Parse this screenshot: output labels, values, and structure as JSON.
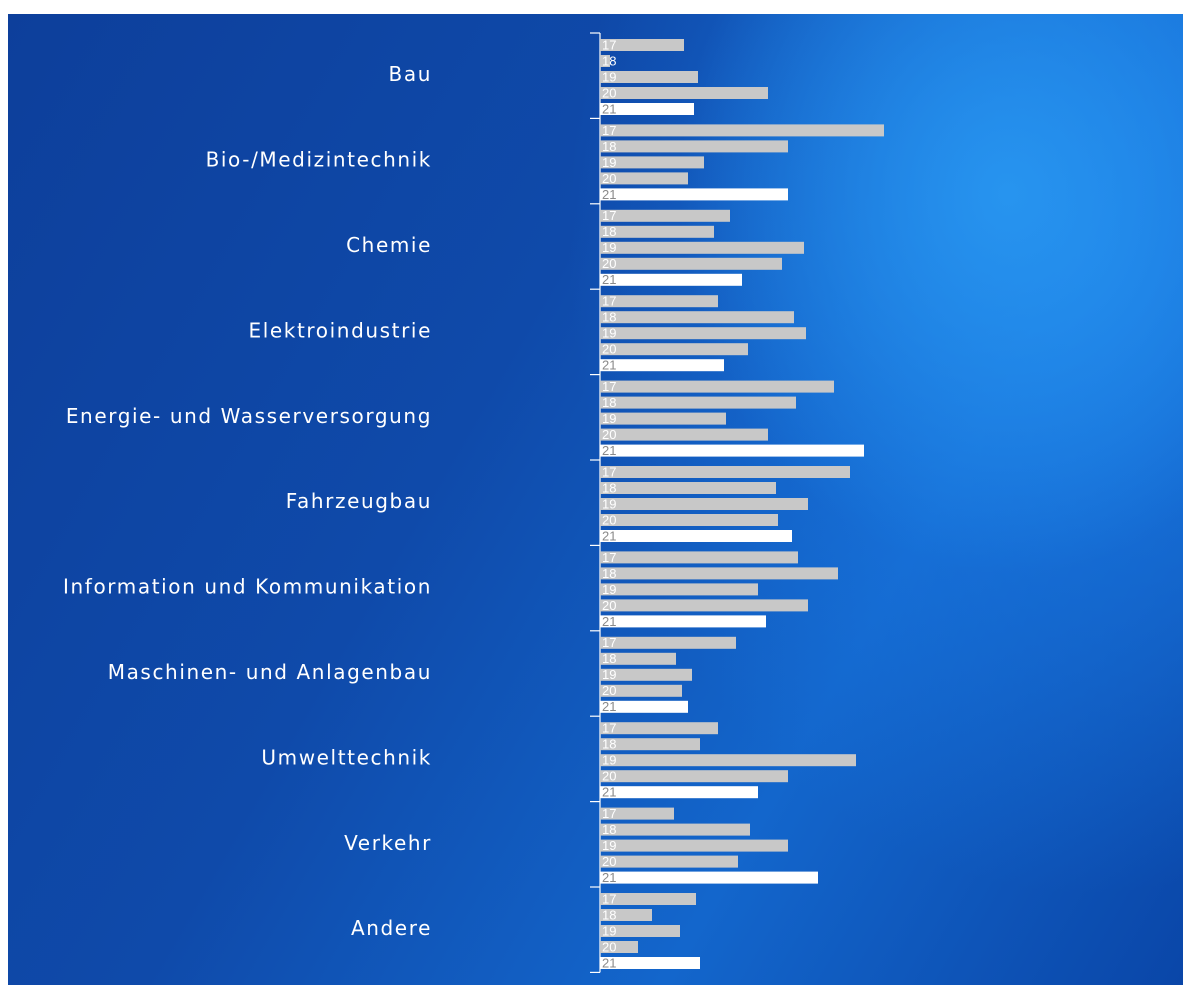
{
  "chart_data": {
    "type": "bar",
    "orientation": "horizontal",
    "categories": [
      "Bau",
      "Bio-/Medizintechnik",
      "Chemie",
      "Elektroindustrie",
      "Energie- und Wasserversorgung",
      "Fahrzeugbau",
      "Information und Kommunikation",
      "Maschinen- und Anlagenbau",
      "Umwelttechnik",
      "Verkehr",
      "Andere"
    ],
    "series": [
      {
        "name": "17",
        "values": [
          84,
          284,
          130,
          118,
          234,
          250,
          198,
          136,
          118,
          74,
          96
        ]
      },
      {
        "name": "18",
        "values": [
          10,
          188,
          114,
          194,
          196,
          176,
          238,
          76,
          100,
          150,
          52
        ]
      },
      {
        "name": "19",
        "values": [
          98,
          104,
          204,
          206,
          126,
          208,
          158,
          92,
          256,
          188,
          80
        ]
      },
      {
        "name": "20",
        "values": [
          168,
          88,
          182,
          148,
          168,
          178,
          208,
          82,
          188,
          138,
          38
        ]
      },
      {
        "name": "21",
        "values": [
          94,
          188,
          142,
          124,
          264,
          192,
          166,
          88,
          158,
          218,
          100
        ]
      }
    ],
    "colors": {
      "past_years": "#c8c8c8",
      "current_year": "#ffffff",
      "label_on_gray": "#ffffff",
      "label_on_white": "#8a8a8a",
      "category_text": "#ffffff",
      "axis": "#ffffff"
    },
    "grid": false,
    "legend": "none"
  }
}
